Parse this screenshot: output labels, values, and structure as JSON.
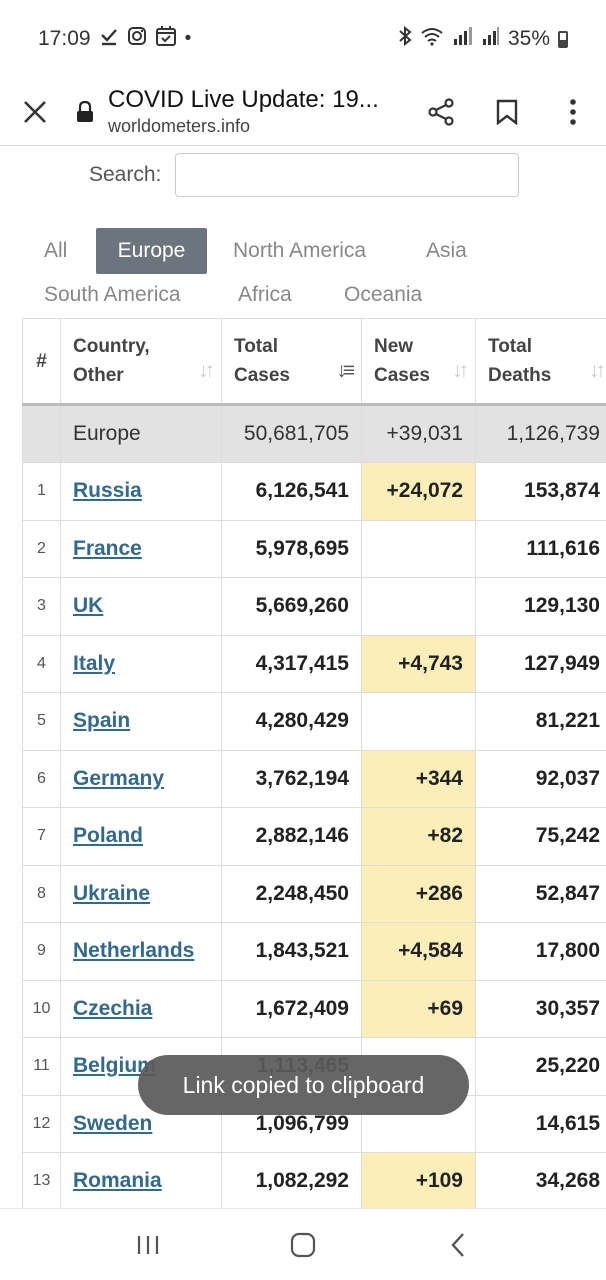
{
  "status_bar": {
    "time": "17:09",
    "battery_text": "35%"
  },
  "browser": {
    "page_title": "COVID Live Update: 19...",
    "url": "worldometers.info"
  },
  "search": {
    "label": "Search:",
    "value": "",
    "placeholder": ""
  },
  "tabs": [
    "All",
    "Europe",
    "North America",
    "Asia",
    "South America",
    "Africa",
    "Oceania"
  ],
  "active_tab": "Europe",
  "table": {
    "headers": {
      "rank": "#",
      "country_line1": "Country,",
      "country_line2": "Other",
      "total_cases_line1": "Total",
      "total_cases_line2": "Cases",
      "new_cases_line1": "New",
      "new_cases_line2": "Cases",
      "total_deaths_line1": "Total",
      "total_deaths_line2": "Deaths"
    },
    "total_row": {
      "region": "Europe",
      "total_cases": "50,681,705",
      "new_cases": "+39,031",
      "total_deaths": "1,126,739"
    },
    "rows": [
      {
        "rank": "1",
        "country": "Russia",
        "total_cases": "6,126,541",
        "new_cases": "+24,072",
        "total_deaths": "153,874"
      },
      {
        "rank": "2",
        "country": "France",
        "total_cases": "5,978,695",
        "new_cases": "",
        "total_deaths": "111,616"
      },
      {
        "rank": "3",
        "country": "UK",
        "total_cases": "5,669,260",
        "new_cases": "",
        "total_deaths": "129,130"
      },
      {
        "rank": "4",
        "country": "Italy",
        "total_cases": "4,317,415",
        "new_cases": "+4,743",
        "total_deaths": "127,949"
      },
      {
        "rank": "5",
        "country": "Spain",
        "total_cases": "4,280,429",
        "new_cases": "",
        "total_deaths": "81,221"
      },
      {
        "rank": "6",
        "country": "Germany",
        "total_cases": "3,762,194",
        "new_cases": "+344",
        "total_deaths": "92,037"
      },
      {
        "rank": "7",
        "country": "Poland",
        "total_cases": "2,882,146",
        "new_cases": "+82",
        "total_deaths": "75,242"
      },
      {
        "rank": "8",
        "country": "Ukraine",
        "total_cases": "2,248,450",
        "new_cases": "+286",
        "total_deaths": "52,847"
      },
      {
        "rank": "9",
        "country": "Netherlands",
        "total_cases": "1,843,521",
        "new_cases": "+4,584",
        "total_deaths": "17,800"
      },
      {
        "rank": "10",
        "country": "Czechia",
        "total_cases": "1,672,409",
        "new_cases": "+69",
        "total_deaths": "30,357"
      },
      {
        "rank": "11",
        "country": "Belgium",
        "total_cases": "1,113,465",
        "new_cases": "",
        "total_deaths": "25,220"
      },
      {
        "rank": "12",
        "country": "Sweden",
        "total_cases": "1,096,799",
        "new_cases": "",
        "total_deaths": "14,615"
      },
      {
        "rank": "13",
        "country": "Romania",
        "total_cases": "1,082,292",
        "new_cases": "+109",
        "total_deaths": "34,268"
      }
    ]
  },
  "toast": {
    "message": "Link copied to clipboard"
  },
  "colors": {
    "active_tab_bg": "#6c757d",
    "new_cases_highlight": "#fbeeb8",
    "country_link": "#33698e",
    "death_indicator": "#e53935"
  }
}
